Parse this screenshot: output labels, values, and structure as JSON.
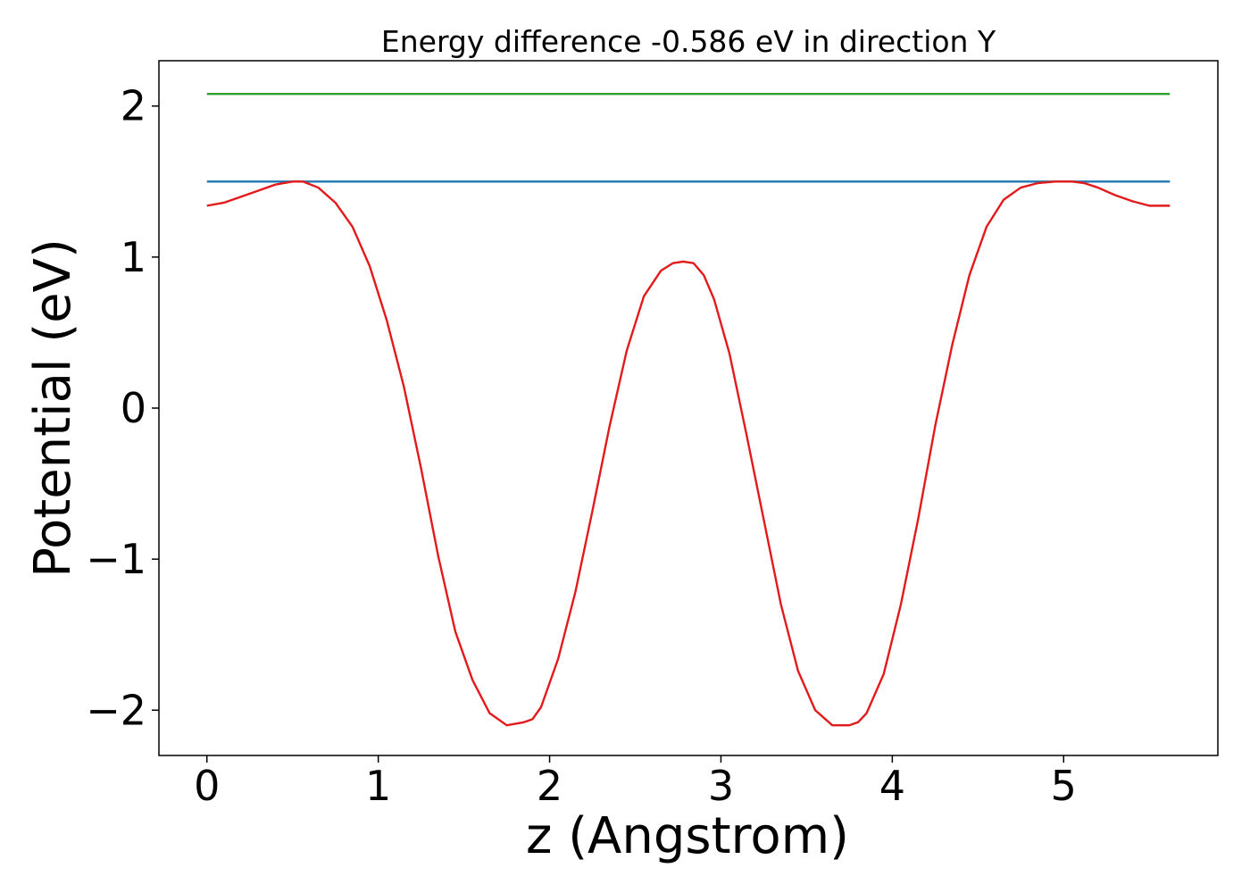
{
  "chart_data": {
    "type": "line",
    "title": "Energy difference -0.586 eV in direction Y",
    "xlabel": "z (Angstrom)",
    "ylabel": "Potential (eV)",
    "xlim": [
      -0.28,
      5.9
    ],
    "ylim": [
      -2.3,
      2.3
    ],
    "xticks": [
      0,
      1,
      2,
      3,
      4,
      5
    ],
    "xtick_labels": [
      "0",
      "1",
      "2",
      "3",
      "4",
      "5"
    ],
    "yticks": [
      -2,
      -1,
      0,
      1,
      2
    ],
    "ytick_labels": [
      "−2",
      "−1",
      "0",
      "1",
      "2"
    ],
    "grid": false,
    "series": [
      {
        "color": "#2ca02c",
        "x": [
          0,
          5.62
        ],
        "y": [
          2.08,
          2.08
        ]
      },
      {
        "color": "#1f77b4",
        "x": [
          0,
          5.62
        ],
        "y": [
          1.5,
          1.5
        ]
      },
      {
        "color": "#e31a1c",
        "x": [
          0,
          0.1,
          0.2,
          0.3,
          0.4,
          0.5,
          0.56,
          0.65,
          0.75,
          0.85,
          0.95,
          1.05,
          1.15,
          1.25,
          1.35,
          1.45,
          1.55,
          1.65,
          1.75,
          1.85,
          1.9,
          1.95,
          2.05,
          2.15,
          2.25,
          2.35,
          2.45,
          2.55,
          2.65,
          2.72,
          2.78,
          2.84,
          2.9,
          2.96,
          3.05,
          3.15,
          3.25,
          3.35,
          3.45,
          3.55,
          3.65,
          3.75,
          3.8,
          3.85,
          3.95,
          4.05,
          4.15,
          4.25,
          4.35,
          4.45,
          4.55,
          4.65,
          4.75,
          4.85,
          4.95,
          5.05,
          5.12,
          5.2,
          5.3,
          5.4,
          5.5,
          5.62
        ],
        "y": [
          1.34,
          1.36,
          1.4,
          1.44,
          1.48,
          1.5,
          1.5,
          1.46,
          1.36,
          1.2,
          0.94,
          0.58,
          0.14,
          -0.4,
          -0.98,
          -1.48,
          -1.8,
          -2.02,
          -2.1,
          -2.08,
          -2.06,
          -1.98,
          -1.66,
          -1.22,
          -0.68,
          -0.12,
          0.38,
          0.74,
          0.91,
          0.96,
          0.97,
          0.96,
          0.88,
          0.72,
          0.36,
          -0.18,
          -0.74,
          -1.3,
          -1.74,
          -2.0,
          -2.1,
          -2.1,
          -2.08,
          -2.02,
          -1.76,
          -1.3,
          -0.74,
          -0.12,
          0.42,
          0.88,
          1.2,
          1.38,
          1.46,
          1.49,
          1.5,
          1.5,
          1.49,
          1.46,
          1.41,
          1.37,
          1.34,
          1.34
        ]
      }
    ]
  }
}
